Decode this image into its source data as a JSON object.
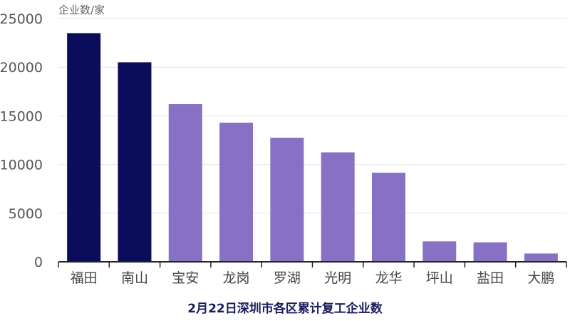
{
  "chart_data": {
    "type": "bar",
    "title": "2月22日深圳市各区累计复工企业数",
    "ylabel": "企业数/家",
    "xlabel": "",
    "categories": [
      "福田",
      "南山",
      "宝安",
      "龙岗",
      "罗湖",
      "光明",
      "龙华",
      "坪山",
      "盐田",
      "大鹏"
    ],
    "values": [
      23500,
      20500,
      16200,
      14300,
      12750,
      11250,
      9150,
      2100,
      2000,
      850
    ],
    "ylim": [
      0,
      25000
    ],
    "yticks": [
      0,
      5000,
      10000,
      15000,
      20000,
      25000
    ],
    "grid": true,
    "colors": {
      "highlight": "#0b0c5a",
      "default": "#8870c4",
      "highlight_categories": [
        "福田",
        "南山"
      ]
    }
  }
}
